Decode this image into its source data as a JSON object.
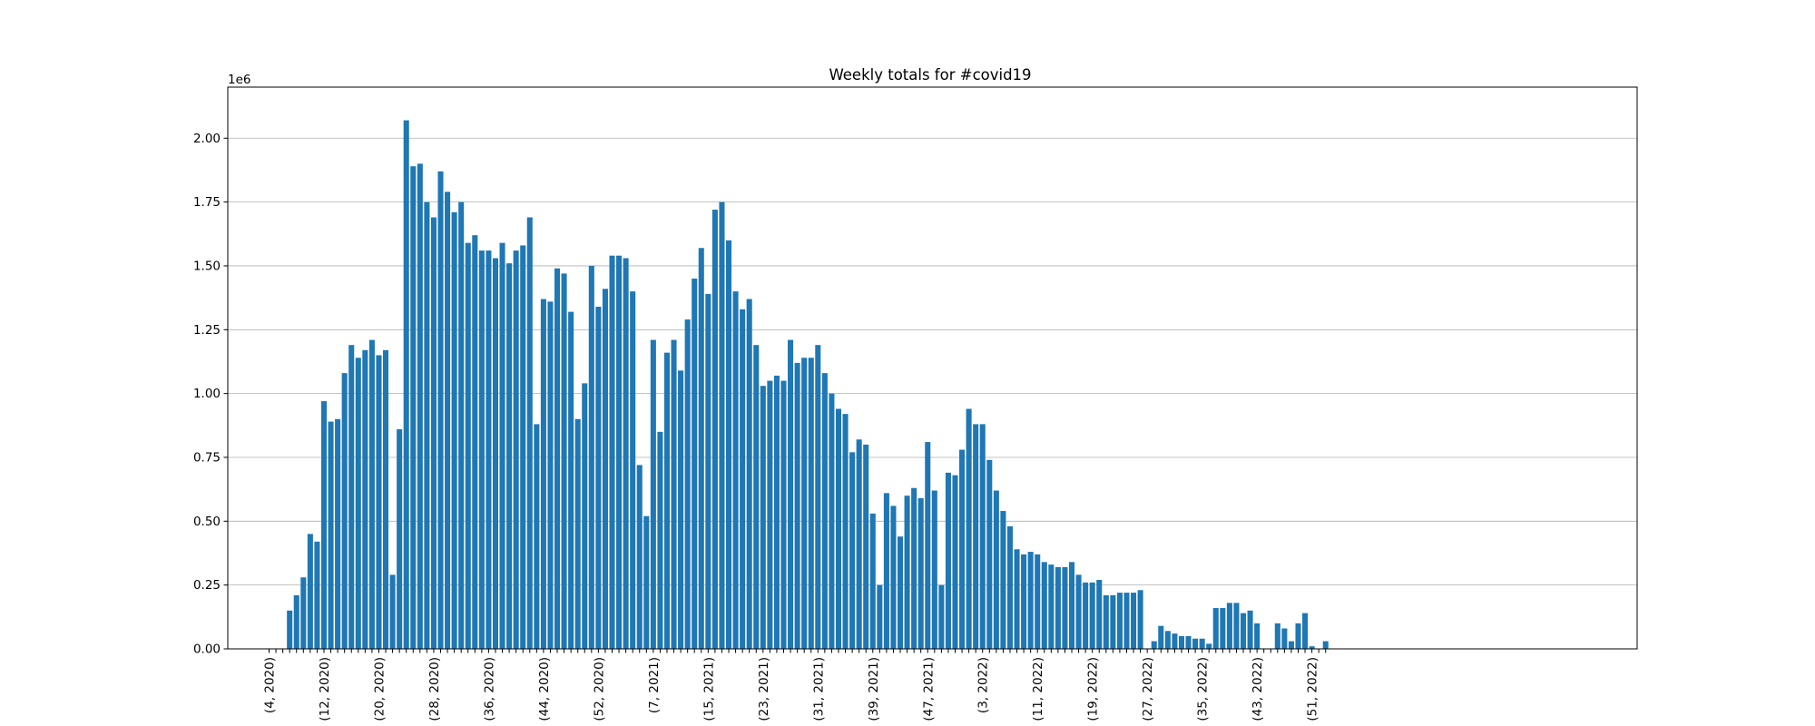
{
  "chart_data": {
    "type": "bar",
    "title": "Weekly totals for #covid19",
    "xlabel": "",
    "ylabel": "",
    "y_offset_label": "1e6",
    "ylim": [
      0,
      2.2
    ],
    "y_scale_note": "values in units of 1e6",
    "grid": "horizontal",
    "color": "#1f77b4",
    "y_ticks": [
      "0.00",
      "0.25",
      "0.50",
      "0.75",
      "1.00",
      "1.25",
      "1.50",
      "1.75",
      "2.00"
    ],
    "x_tick_labels": [
      {
        "index": 0,
        "label": "(4, 2020)"
      },
      {
        "index": 8,
        "label": "(12, 2020)"
      },
      {
        "index": 16,
        "label": "(20, 2020)"
      },
      {
        "index": 24,
        "label": "(28, 2020)"
      },
      {
        "index": 32,
        "label": "(36, 2020)"
      },
      {
        "index": 40,
        "label": "(44, 2020)"
      },
      {
        "index": 48,
        "label": "(52, 2020)"
      },
      {
        "index": 56,
        "label": "(7, 2021)"
      },
      {
        "index": 64,
        "label": "(15, 2021)"
      },
      {
        "index": 72,
        "label": "(23, 2021)"
      },
      {
        "index": 80,
        "label": "(31, 2021)"
      },
      {
        "index": 88,
        "label": "(39, 2021)"
      },
      {
        "index": 96,
        "label": "(47, 2021)"
      },
      {
        "index": 104,
        "label": "(3, 2022)"
      },
      {
        "index": 112,
        "label": "(11, 2022)"
      },
      {
        "index": 120,
        "label": "(19, 2022)"
      },
      {
        "index": 128,
        "label": "(27, 2022)"
      },
      {
        "index": 136,
        "label": "(35, 2022)"
      },
      {
        "index": 144,
        "label": "(43, 2022)"
      },
      {
        "index": 152,
        "label": "(51, 2022)"
      }
    ],
    "values": [
      0,
      0,
      0,
      0.15,
      0.21,
      0.28,
      0.45,
      0.42,
      0.97,
      0.89,
      0.9,
      1.08,
      1.19,
      1.14,
      1.17,
      1.21,
      1.15,
      1.17,
      0.29,
      0.86,
      2.07,
      1.89,
      1.9,
      1.75,
      1.69,
      1.87,
      1.79,
      1.71,
      1.75,
      1.59,
      1.62,
      1.56,
      1.56,
      1.53,
      1.59,
      1.51,
      1.56,
      1.58,
      1.69,
      0.88,
      1.37,
      1.36,
      1.49,
      1.47,
      1.32,
      0.9,
      1.04,
      1.5,
      1.34,
      1.41,
      1.54,
      1.54,
      1.53,
      1.4,
      0.72,
      0.52,
      1.21,
      0.85,
      1.16,
      1.21,
      1.09,
      1.29,
      1.45,
      1.57,
      1.39,
      1.72,
      1.75,
      1.6,
      1.4,
      1.33,
      1.37,
      1.19,
      1.03,
      1.05,
      1.07,
      1.05,
      1.21,
      1.12,
      1.14,
      1.14,
      1.19,
      1.08,
      1.0,
      0.94,
      0.92,
      0.77,
      0.82,
      0.8,
      0.53,
      0.25,
      0.61,
      0.56,
      0.44,
      0.6,
      0.63,
      0.59,
      0.81,
      0.62,
      0.25,
      0.69,
      0.68,
      0.78,
      0.94,
      0.88,
      0.88,
      0.74,
      0.62,
      0.54,
      0.48,
      0.39,
      0.37,
      0.38,
      0.37,
      0.34,
      0.33,
      0.32,
      0.32,
      0.34,
      0.29,
      0.26,
      0.26,
      0.27,
      0.21,
      0.21,
      0.22,
      0.22,
      0.22,
      0.23,
      0,
      0.03,
      0.09,
      0.07,
      0.06,
      0.05,
      0.05,
      0.04,
      0.04,
      0.02,
      0.16,
      0.16,
      0.18,
      0.18,
      0.14,
      0.15,
      0.1,
      0,
      0,
      0.1,
      0.08,
      0.03,
      0.1,
      0.14,
      0.01,
      0,
      0.03
    ]
  }
}
